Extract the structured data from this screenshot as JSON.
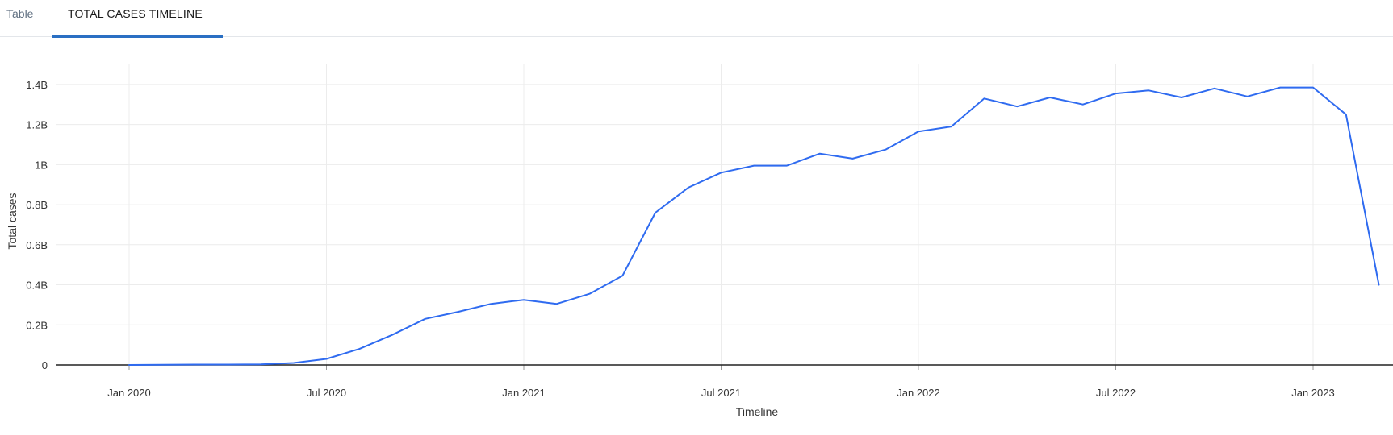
{
  "tabs": {
    "table": "Table",
    "timeline": "TOTAL CASES TIMELINE"
  },
  "colors": {
    "line": "#2f6bf0",
    "grid": "#ececec",
    "zero_line": "#222222",
    "active_tab_underline": "#2a6fc3"
  },
  "chart_data": {
    "type": "line",
    "xlabel": "Timeline",
    "ylabel": "Total cases",
    "ylim": [
      0,
      1.5
    ],
    "y_unit": "B",
    "grid": true,
    "y_ticks": [
      {
        "v": 0,
        "label": "0"
      },
      {
        "v": 0.2,
        "label": "0.2B"
      },
      {
        "v": 0.4,
        "label": "0.4B"
      },
      {
        "v": 0.6,
        "label": "0.6B"
      },
      {
        "v": 0.8,
        "label": "0.8B"
      },
      {
        "v": 1.0,
        "label": "1B"
      },
      {
        "v": 1.2,
        "label": "1.2B"
      },
      {
        "v": 1.4,
        "label": "1.4B"
      }
    ],
    "x_ticks": [
      "Jan 2020",
      "Jul 2020",
      "Jan 2021",
      "Jul 2021",
      "Jan 2022",
      "Jul 2022",
      "Jan 2023"
    ],
    "series": [
      {
        "x": [
          "Jan 2020",
          "Feb 2020",
          "Mar 2020",
          "Apr 2020",
          "May 2020",
          "Jun 2020",
          "Jul 2020",
          "Aug 2020",
          "Sep 2020",
          "Oct 2020",
          "Nov 2020",
          "Dec 2020",
          "Jan 2021",
          "Feb 2021",
          "Mar 2021",
          "Apr 2021",
          "May 2021",
          "Jun 2021",
          "Jul 2021",
          "Aug 2021",
          "Sep 2021",
          "Oct 2021",
          "Nov 2021",
          "Dec 2021",
          "Jan 2022",
          "Feb 2022",
          "Mar 2022",
          "Apr 2022",
          "May 2022",
          "Jun 2022",
          "Jul 2022",
          "Aug 2022",
          "Sep 2022",
          "Oct 2022",
          "Nov 2022",
          "Dec 2022",
          "Jan 2023",
          "Feb 2023",
          "Mar 2023"
        ],
        "values": [
          0.0,
          0.001,
          0.002,
          0.002,
          0.003,
          0.01,
          0.03,
          0.08,
          0.15,
          0.23,
          0.265,
          0.305,
          0.325,
          0.305,
          0.355,
          0.445,
          0.76,
          0.885,
          0.96,
          0.995,
          0.995,
          1.055,
          1.03,
          1.075,
          1.165,
          1.19,
          1.33,
          1.29,
          1.335,
          1.3,
          1.355,
          1.37,
          1.335,
          1.38,
          1.34,
          1.385,
          1.385,
          1.25,
          0.4
        ]
      }
    ]
  }
}
